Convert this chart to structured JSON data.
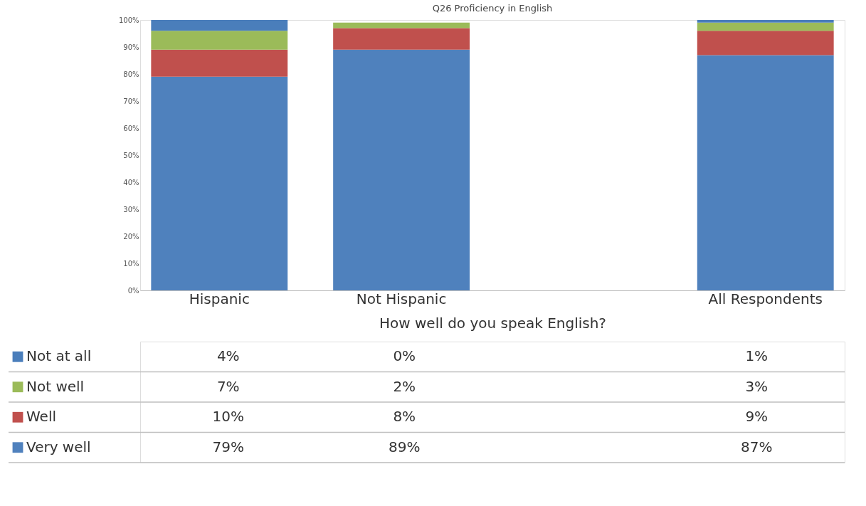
{
  "chart_data": {
    "type": "bar",
    "stacked": true,
    "title": "Q26 Proficiency in English",
    "xlabel": "How well do you speak English?",
    "categories": [
      "Hispanic",
      "Not Hispanic",
      null,
      "All Respondents"
    ],
    "series": [
      {
        "name": "Very well",
        "color": "#4f81bd",
        "values": [
          79,
          89,
          null,
          87
        ],
        "value_labels": [
          "79%",
          "89%",
          null,
          "87%"
        ]
      },
      {
        "name": "Well",
        "color": "#c0504d",
        "values": [
          10,
          8,
          null,
          9
        ],
        "value_labels": [
          "10%",
          "8%",
          null,
          "9%"
        ]
      },
      {
        "name": "Not well",
        "color": "#9bbb59",
        "values": [
          7,
          2,
          null,
          3
        ],
        "value_labels": [
          "7%",
          "2%",
          null,
          "3%"
        ]
      },
      {
        "name": "Not at all",
        "color": "#4a7ebb",
        "values": [
          4,
          0,
          null,
          1
        ],
        "value_labels": [
          "4%",
          "0%",
          null,
          "1%"
        ]
      }
    ],
    "ylim": [
      0,
      100
    ],
    "yticks": [
      {
        "value": 0,
        "label": "0%"
      },
      {
        "value": 10,
        "label": "10%"
      },
      {
        "value": 20,
        "label": "20%"
      },
      {
        "value": 30,
        "label": "30%"
      },
      {
        "value": 40,
        "label": "40%"
      },
      {
        "value": 50,
        "label": "50%"
      },
      {
        "value": 60,
        "label": "60%"
      },
      {
        "value": 70,
        "label": "70%"
      },
      {
        "value": 80,
        "label": "80%"
      },
      {
        "value": 90,
        "label": "90%"
      },
      {
        "value": 100,
        "label": "100%"
      }
    ],
    "grid": false,
    "legend": "bottom"
  }
}
